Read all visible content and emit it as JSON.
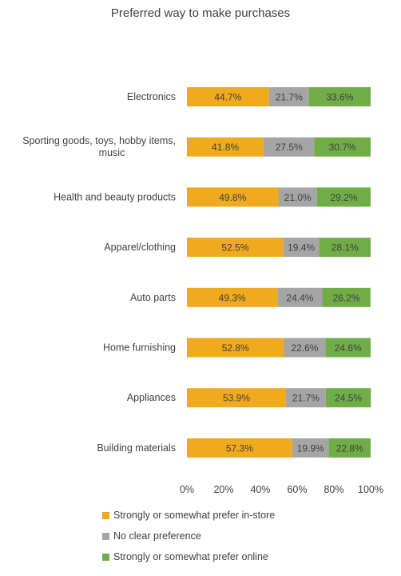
{
  "chart_data": {
    "type": "bar",
    "orientation": "horizontal",
    "stacked": true,
    "title": "Preferred way to make purchases",
    "categories": [
      "Electronics",
      "Sporting goods, toys, hobby items, music",
      "Health and beauty products",
      "Apparel/clothing",
      "Auto parts",
      "Home furnishing",
      "Appliances",
      "Building materials"
    ],
    "series": [
      {
        "name": "Strongly or somewhat prefer in-store",
        "color": "#F0AA1E",
        "values": [
          44.7,
          41.8,
          49.8,
          52.5,
          49.3,
          52.8,
          53.9,
          57.3
        ]
      },
      {
        "name": "No clear preference",
        "color": "#A5A5A5",
        "values": [
          21.7,
          27.5,
          21.0,
          19.4,
          24.4,
          22.6,
          21.7,
          19.9
        ]
      },
      {
        "name": "Strongly or somewhat prefer online",
        "color": "#70AD47",
        "values": [
          33.6,
          30.7,
          29.2,
          28.1,
          26.2,
          24.6,
          24.5,
          22.8
        ]
      }
    ],
    "data_labels": [
      [
        "44.7%",
        "21.7%",
        "33.6%"
      ],
      [
        "41.8%",
        "27.5%",
        "30.7%"
      ],
      [
        "49.8%",
        "21.0%",
        "29.2%"
      ],
      [
        "52.5%",
        "19.4%",
        "28.1%"
      ],
      [
        "49.3%",
        "24.4%",
        "26.2%"
      ],
      [
        "52.8%",
        "22.6%",
        "24.6%"
      ],
      [
        "53.9%",
        "21.7%",
        "24.5%"
      ],
      [
        "57.3%",
        "19.9%",
        "22.8%"
      ]
    ],
    "x_ticks": [
      "0%",
      "20%",
      "40%",
      "60%",
      "80%",
      "100%"
    ],
    "xlim": [
      0,
      100
    ],
    "grid": false,
    "legend_position": "bottom"
  }
}
